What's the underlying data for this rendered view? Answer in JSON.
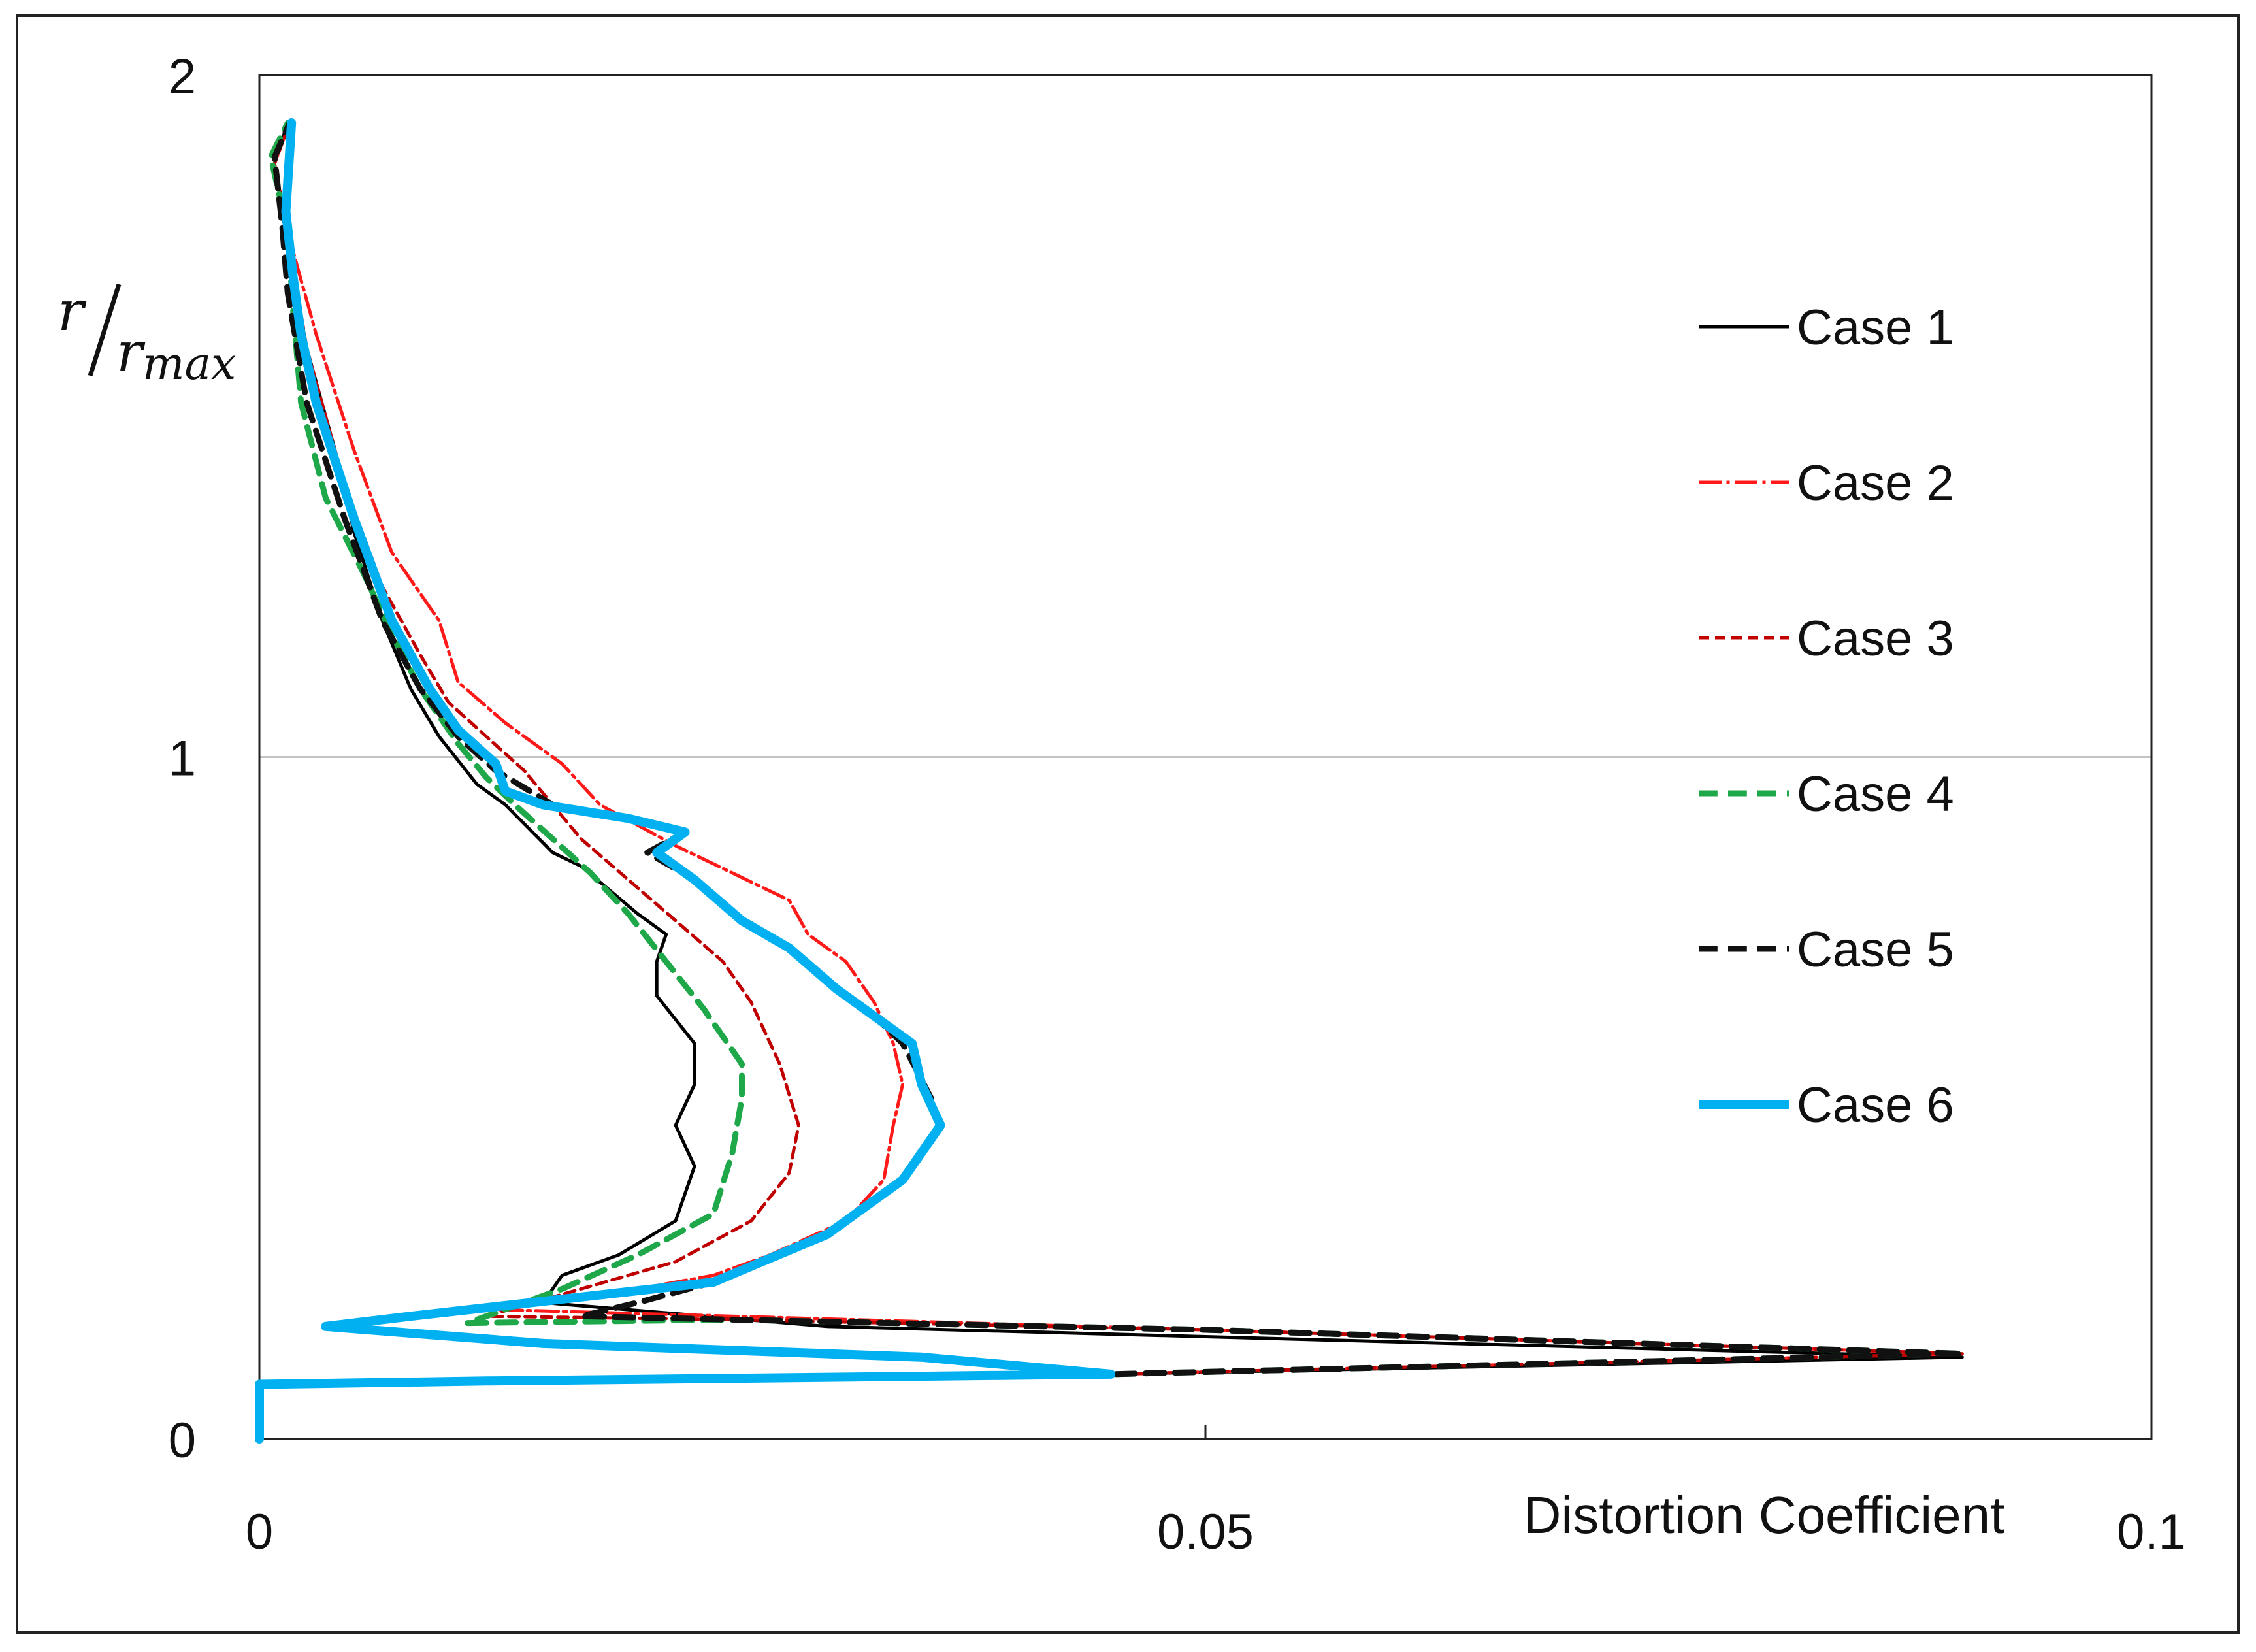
{
  "chart_data": {
    "type": "line",
    "title": "",
    "xlabel": "Distortion Coefficient",
    "ylabel": {
      "numerator": "r",
      "denominator": "r",
      "subscript": "max"
    },
    "xlim": [
      0,
      0.1
    ],
    "ylim": [
      0,
      2
    ],
    "x_ticks": [
      {
        "value": 0,
        "label": "0"
      },
      {
        "value": 0.05,
        "label": "0.05"
      },
      {
        "value": 0.1,
        "label": "0.1"
      }
    ],
    "y_ticks": [
      {
        "value": 0,
        "label": "0"
      },
      {
        "value": 1,
        "label": "1"
      },
      {
        "value": 2,
        "label": "2"
      }
    ],
    "gridlines_y": [
      1
    ],
    "legend_position": "right",
    "series": [
      {
        "name": "Case 1",
        "color": "#000000",
        "style": "solid",
        "width": "thin",
        "points": [
          [
            0,
            0
          ],
          [
            0,
            0.08
          ],
          [
            0.012,
            0.085
          ],
          [
            0.045,
            0.095
          ],
          [
            0.09,
            0.12
          ],
          [
            0.05,
            0.15
          ],
          [
            0.03,
            0.165
          ],
          [
            0.015,
            0.2
          ],
          [
            0.016,
            0.24
          ],
          [
            0.019,
            0.27
          ],
          [
            0.022,
            0.32
          ],
          [
            0.023,
            0.4
          ],
          [
            0.022,
            0.46
          ],
          [
            0.023,
            0.52
          ],
          [
            0.023,
            0.58
          ],
          [
            0.021,
            0.65
          ],
          [
            0.021,
            0.7
          ],
          [
            0.0215,
            0.74
          ],
          [
            0.02,
            0.77
          ],
          [
            0.017,
            0.84
          ],
          [
            0.0155,
            0.86
          ],
          [
            0.013,
            0.93
          ],
          [
            0.0115,
            0.96
          ],
          [
            0.0095,
            1.03
          ],
          [
            0.008,
            1.1
          ],
          [
            0.0065,
            1.2
          ],
          [
            0.005,
            1.33
          ],
          [
            0.004,
            1.45
          ],
          [
            0.0025,
            1.6
          ],
          [
            0.0015,
            1.75
          ],
          [
            0.0008,
            1.87
          ],
          [
            0.0015,
            1.93
          ]
        ]
      },
      {
        "name": "Case 2",
        "color": "#ff1a1a",
        "style": "dashdot",
        "width": "thin",
        "points": [
          [
            0,
            0
          ],
          [
            0,
            0.08
          ],
          [
            0.012,
            0.085
          ],
          [
            0.045,
            0.095
          ],
          [
            0.09,
            0.125
          ],
          [
            0.05,
            0.16
          ],
          [
            0.025,
            0.18
          ],
          [
            0.012,
            0.19
          ],
          [
            0.018,
            0.21
          ],
          [
            0.024,
            0.24
          ],
          [
            0.027,
            0.27
          ],
          [
            0.031,
            0.32
          ],
          [
            0.033,
            0.38
          ],
          [
            0.0335,
            0.46
          ],
          [
            0.034,
            0.52
          ],
          [
            0.0335,
            0.58
          ],
          [
            0.0325,
            0.64
          ],
          [
            0.031,
            0.7
          ],
          [
            0.029,
            0.74
          ],
          [
            0.028,
            0.79
          ],
          [
            0.025,
            0.83
          ],
          [
            0.022,
            0.87
          ],
          [
            0.018,
            0.93
          ],
          [
            0.016,
            0.99
          ],
          [
            0.013,
            1.05
          ],
          [
            0.0105,
            1.11
          ],
          [
            0.0095,
            1.2
          ],
          [
            0.007,
            1.3
          ],
          [
            0.005,
            1.45
          ],
          [
            0.003,
            1.62
          ],
          [
            0.0015,
            1.77
          ],
          [
            0.0008,
            1.87
          ],
          [
            0.0016,
            1.93
          ]
        ]
      },
      {
        "name": "Case 3",
        "color": "#c00000",
        "style": "dash",
        "width": "thin",
        "points": [
          [
            0,
            0
          ],
          [
            0,
            0.08
          ],
          [
            0.012,
            0.085
          ],
          [
            0.045,
            0.095
          ],
          [
            0.09,
            0.125
          ],
          [
            0.05,
            0.16
          ],
          [
            0.025,
            0.175
          ],
          [
            0.012,
            0.18
          ],
          [
            0.017,
            0.22
          ],
          [
            0.022,
            0.26
          ],
          [
            0.026,
            0.32
          ],
          [
            0.028,
            0.39
          ],
          [
            0.0285,
            0.46
          ],
          [
            0.0275,
            0.55
          ],
          [
            0.026,
            0.64
          ],
          [
            0.0245,
            0.7
          ],
          [
            0.022,
            0.76
          ],
          [
            0.0195,
            0.82
          ],
          [
            0.017,
            0.88
          ],
          [
            0.0155,
            0.93
          ],
          [
            0.014,
            0.98
          ],
          [
            0.012,
            1.03
          ],
          [
            0.01,
            1.08
          ],
          [
            0.0085,
            1.15
          ],
          [
            0.0065,
            1.25
          ],
          [
            0.0045,
            1.4
          ],
          [
            0.0025,
            1.6
          ],
          [
            0.0015,
            1.77
          ],
          [
            0.0008,
            1.87
          ],
          [
            0.0016,
            1.93
          ]
        ]
      },
      {
        "name": "Case 4",
        "color": "#1fa84a",
        "style": "dash",
        "width": "medium",
        "points": [
          [
            0,
            0
          ],
          [
            0,
            0.08
          ],
          [
            0.012,
            0.085
          ],
          [
            0.045,
            0.095
          ],
          [
            0.09,
            0.125
          ],
          [
            0.05,
            0.16
          ],
          [
            0.025,
            0.175
          ],
          [
            0.011,
            0.17
          ],
          [
            0.016,
            0.22
          ],
          [
            0.02,
            0.27
          ],
          [
            0.024,
            0.33
          ],
          [
            0.025,
            0.42
          ],
          [
            0.0255,
            0.5
          ],
          [
            0.0255,
            0.55
          ],
          [
            0.0235,
            0.63
          ],
          [
            0.0215,
            0.7
          ],
          [
            0.0195,
            0.77
          ],
          [
            0.0175,
            0.83
          ],
          [
            0.0155,
            0.88
          ],
          [
            0.0135,
            0.93
          ],
          [
            0.012,
            0.97
          ],
          [
            0.0105,
            1.02
          ],
          [
            0.0085,
            1.1
          ],
          [
            0.007,
            1.18
          ],
          [
            0.0055,
            1.27
          ],
          [
            0.0035,
            1.38
          ],
          [
            0.0022,
            1.52
          ],
          [
            0.0018,
            1.65
          ],
          [
            0.0015,
            1.77
          ],
          [
            0.0006,
            1.88
          ],
          [
            0.0015,
            1.93
          ]
        ]
      },
      {
        "name": "Case 5",
        "color": "#111111",
        "style": "dash",
        "width": "medium",
        "points": [
          [
            0,
            0
          ],
          [
            0,
            0.08
          ],
          [
            0.012,
            0.085
          ],
          [
            0.045,
            0.095
          ],
          [
            0.09,
            0.125
          ],
          [
            0.05,
            0.16
          ],
          [
            0.025,
            0.175
          ],
          [
            0.017,
            0.18
          ],
          [
            0.02,
            0.2
          ],
          [
            0.024,
            0.23
          ],
          [
            0.03,
            0.3
          ],
          [
            0.034,
            0.38
          ],
          [
            0.036,
            0.46
          ],
          [
            0.0355,
            0.5
          ],
          [
            0.034,
            0.58
          ],
          [
            0.0325,
            0.62
          ],
          [
            0.0305,
            0.66
          ],
          [
            0.028,
            0.72
          ],
          [
            0.0255,
            0.76
          ],
          [
            0.023,
            0.82
          ],
          [
            0.0205,
            0.86
          ],
          [
            0.0225,
            0.89
          ],
          [
            0.0195,
            0.91
          ],
          [
            0.0155,
            0.93
          ],
          [
            0.0125,
            0.98
          ],
          [
            0.0105,
            1.03
          ],
          [
            0.0085,
            1.1
          ],
          [
            0.0065,
            1.2
          ],
          [
            0.0045,
            1.35
          ],
          [
            0.0025,
            1.52
          ],
          [
            0.0015,
            1.68
          ],
          [
            0.0012,
            1.78
          ],
          [
            0.0008,
            1.88
          ],
          [
            0.0016,
            1.93
          ]
        ]
      },
      {
        "name": "Case 6",
        "color": "#00b0f0",
        "style": "solid",
        "width": "thick",
        "points": [
          [
            0,
            0
          ],
          [
            0,
            0.08
          ],
          [
            0.012,
            0.085
          ],
          [
            0.045,
            0.095
          ],
          [
            0.035,
            0.12
          ],
          [
            0.015,
            0.14
          ],
          [
            0.0035,
            0.165
          ],
          [
            0.008,
            0.18
          ],
          [
            0.024,
            0.23
          ],
          [
            0.03,
            0.3
          ],
          [
            0.034,
            0.38
          ],
          [
            0.036,
            0.46
          ],
          [
            0.035,
            0.52
          ],
          [
            0.0345,
            0.58
          ],
          [
            0.0325,
            0.62
          ],
          [
            0.0305,
            0.66
          ],
          [
            0.028,
            0.72
          ],
          [
            0.0255,
            0.76
          ],
          [
            0.023,
            0.82
          ],
          [
            0.021,
            0.86
          ],
          [
            0.0225,
            0.89
          ],
          [
            0.0195,
            0.91
          ],
          [
            0.015,
            0.93
          ],
          [
            0.013,
            0.95
          ],
          [
            0.0125,
            0.99
          ],
          [
            0.0105,
            1.04
          ],
          [
            0.009,
            1.1
          ],
          [
            0.007,
            1.2
          ],
          [
            0.005,
            1.35
          ],
          [
            0.003,
            1.52
          ],
          [
            0.0022,
            1.62
          ],
          [
            0.0018,
            1.7
          ],
          [
            0.0014,
            1.8
          ],
          [
            0.0017,
            1.93
          ]
        ]
      }
    ]
  }
}
